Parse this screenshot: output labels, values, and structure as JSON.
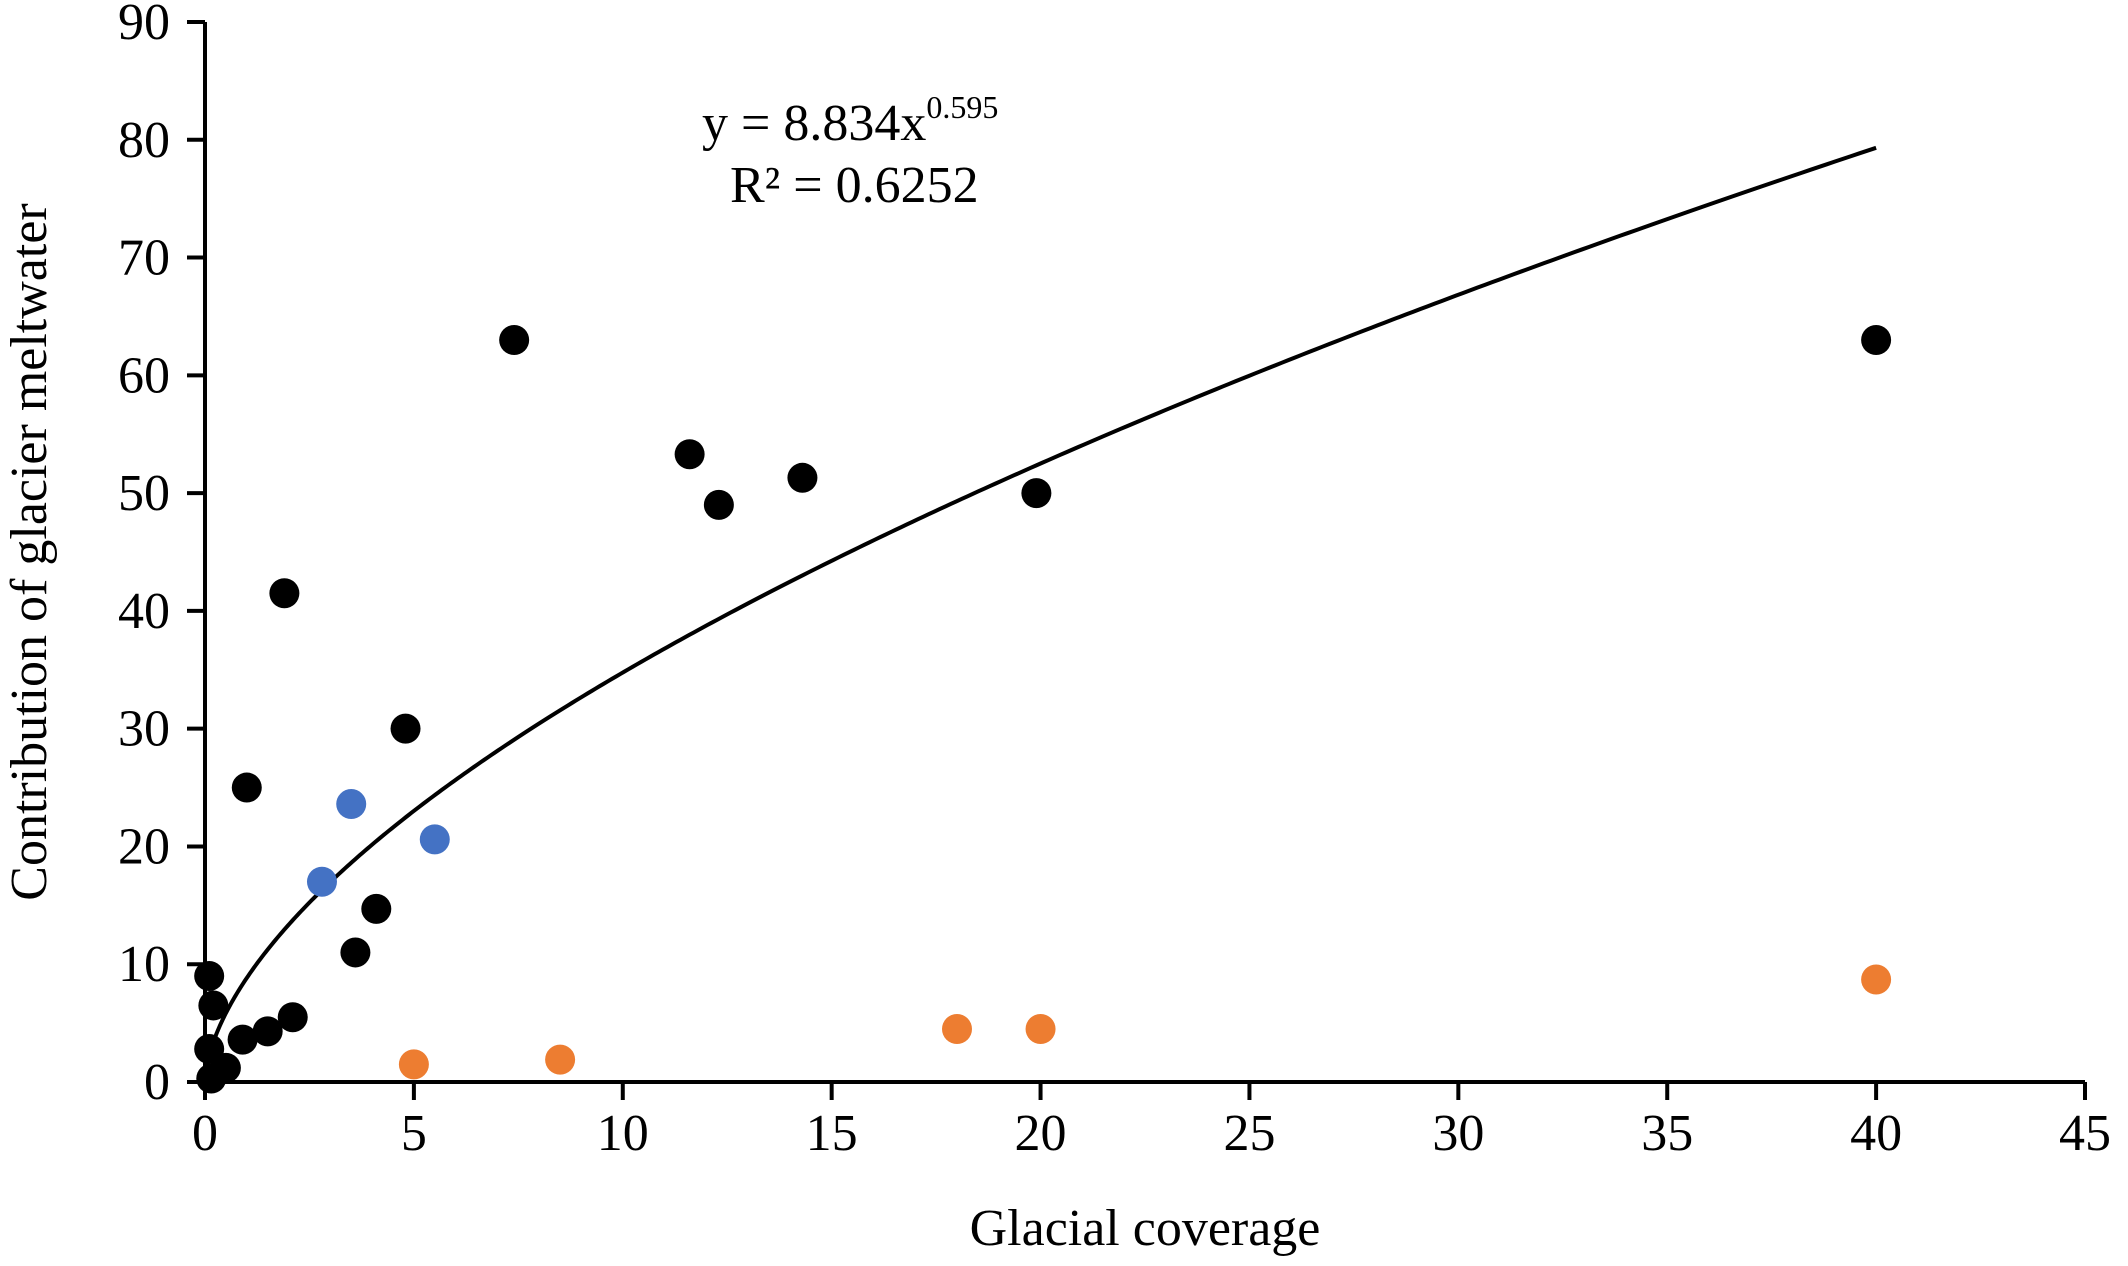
{
  "chart_data": {
    "type": "scatter",
    "xlabel": "Glacial coverage",
    "ylabel": "Contribution of glacier meltwater",
    "xlim": [
      0,
      45
    ],
    "ylim": [
      0,
      90
    ],
    "x_ticks": [
      0,
      5,
      10,
      15,
      20,
      25,
      30,
      35,
      40,
      45
    ],
    "y_ticks": [
      0,
      10,
      20,
      30,
      40,
      50,
      60,
      70,
      80,
      90
    ],
    "grid": false,
    "legend": "none",
    "series": [
      {
        "color": "#000000",
        "points": [
          [
            0.1,
            9.0
          ],
          [
            0.2,
            6.5
          ],
          [
            0.1,
            2.8
          ],
          [
            0.15,
            0.3
          ],
          [
            0.5,
            1.2
          ],
          [
            0.9,
            3.6
          ],
          [
            1.0,
            25.0
          ],
          [
            1.5,
            4.3
          ],
          [
            1.9,
            41.5
          ],
          [
            2.1,
            5.5
          ],
          [
            3.6,
            11.0
          ],
          [
            4.1,
            14.7
          ],
          [
            4.8,
            30.0
          ],
          [
            7.4,
            63.0
          ],
          [
            11.6,
            53.3
          ],
          [
            12.3,
            49.0
          ],
          [
            14.3,
            51.3
          ],
          [
            19.9,
            50.0
          ],
          [
            40.0,
            63.0
          ]
        ]
      },
      {
        "color": "#4472C4",
        "points": [
          [
            2.8,
            17.0
          ],
          [
            3.5,
            23.6
          ],
          [
            5.5,
            20.6
          ]
        ]
      },
      {
        "color": "#ED7D31",
        "points": [
          [
            5.0,
            1.5
          ],
          [
            8.5,
            1.9
          ],
          [
            18.0,
            4.5
          ],
          [
            20.0,
            4.5
          ],
          [
            40.0,
            8.7
          ]
        ]
      }
    ],
    "trendline": {
      "type": "power",
      "a": 8.834,
      "b": 0.595,
      "x_range": [
        0.05,
        40
      ],
      "color": "#000000",
      "equation_base": "y = 8.834x",
      "equation_exponent": "0.595",
      "r_squared_text": "R² = 0.6252"
    }
  }
}
